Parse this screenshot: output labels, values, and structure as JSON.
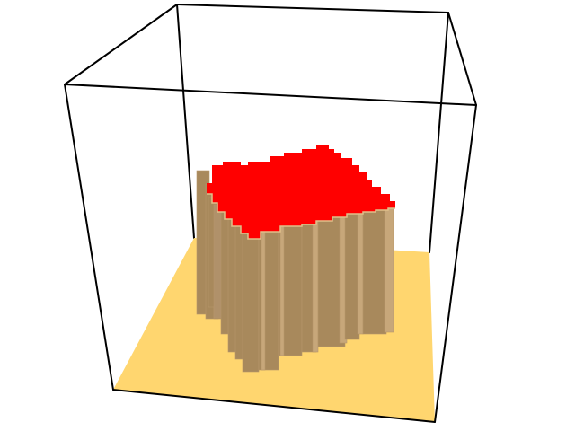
{
  "scene": {
    "description_label": "",
    "colors": {
      "background": "#ffffff",
      "box_edges": "#000000",
      "floor": "#ffd66f",
      "column_front": "#a8895c",
      "column_side": "#c7a77a",
      "column_highlight": "#e0c08a",
      "top_surface": "#ff0000"
    }
  }
}
